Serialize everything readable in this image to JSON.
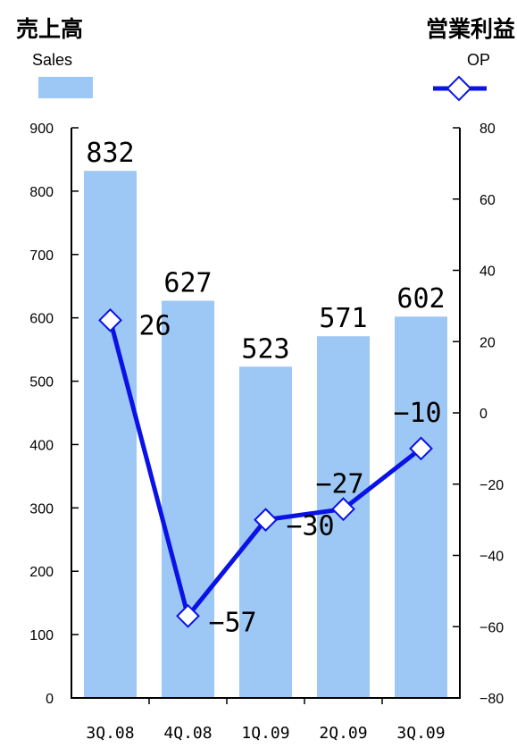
{
  "chart_data": {
    "type": "bar",
    "categories": [
      "3Q.08",
      "4Q.08",
      "1Q.09",
      "2Q.09",
      "3Q.09"
    ],
    "series": [
      {
        "name": "売上高",
        "name_sub": "Sales",
        "type": "bar",
        "axis": "left",
        "color": "#9dc8f6",
        "values": [
          832,
          627,
          523,
          571,
          602
        ],
        "labels": [
          "832",
          "627",
          "523",
          "571",
          "602"
        ]
      },
      {
        "name": "営業利益",
        "name_sub": "OP",
        "type": "line",
        "axis": "right",
        "color": "#0a12e6",
        "marker": "diamond",
        "values": [
          26,
          -57,
          -30,
          -27,
          -10
        ],
        "labels": [
          "26",
          "−57",
          "−30",
          "−27",
          "−10"
        ]
      }
    ],
    "y_left": {
      "ylim": [
        0,
        900
      ],
      "ticks": [
        "0",
        "100",
        "200",
        "300",
        "400",
        "500",
        "600",
        "700",
        "800",
        "900"
      ]
    },
    "y_right": {
      "ylim": [
        -80,
        80
      ],
      "ticks": [
        "−80",
        "−60",
        "−40",
        "−20",
        "0",
        "20",
        "40",
        "60",
        "80"
      ]
    },
    "legend": {
      "left_title": "売上高",
      "left_sub": "Sales",
      "right_title": "営業利益",
      "right_sub": "OP"
    },
    "grid": false
  }
}
